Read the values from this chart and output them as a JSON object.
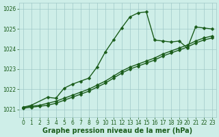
{
  "xlabel": "Graphe pression niveau de la mer (hPa)",
  "background_color": "#ceeee8",
  "grid_color": "#a0c8c8",
  "line_color": "#1a5c1a",
  "marker": "D",
  "markersize": 2.5,
  "linewidth": 1.0,
  "xlim": [
    -0.5,
    23.5
  ],
  "ylim": [
    1020.6,
    1026.3
  ],
  "yticks": [
    1021,
    1022,
    1023,
    1024,
    1025,
    1026
  ],
  "xticks": [
    0,
    1,
    2,
    3,
    4,
    5,
    6,
    7,
    8,
    9,
    10,
    11,
    12,
    13,
    14,
    15,
    16,
    17,
    18,
    19,
    20,
    21,
    22,
    23
  ],
  "line1_x": [
    0,
    1,
    3,
    4,
    5,
    6,
    7,
    8,
    9,
    10,
    11,
    12,
    13,
    14,
    15,
    16,
    17,
    18,
    19,
    20,
    21,
    22,
    23
  ],
  "line1_y": [
    1021.1,
    1021.2,
    1021.6,
    1021.55,
    1022.05,
    1022.25,
    1022.4,
    1022.55,
    1023.1,
    1023.85,
    1024.45,
    1025.05,
    1025.6,
    1025.8,
    1025.85,
    1024.45,
    1024.4,
    1024.35,
    1024.4,
    1024.05,
    1025.1,
    1025.05,
    1025.0
  ],
  "line2_x": [
    0,
    1,
    2,
    3,
    4,
    5,
    6,
    7,
    8,
    9,
    10,
    11,
    12,
    13,
    14,
    15,
    16,
    17,
    18,
    19,
    20,
    21,
    22,
    23
  ],
  "line2_y": [
    1021.05,
    1021.1,
    1021.15,
    1021.2,
    1021.3,
    1021.45,
    1021.6,
    1021.75,
    1021.9,
    1022.1,
    1022.3,
    1022.55,
    1022.8,
    1023.0,
    1023.15,
    1023.3,
    1023.45,
    1023.65,
    1023.8,
    1023.95,
    1024.1,
    1024.3,
    1024.45,
    1024.55
  ],
  "line3_x": [
    0,
    1,
    2,
    3,
    4,
    5,
    6,
    7,
    8,
    9,
    10,
    11,
    12,
    13,
    14,
    15,
    16,
    17,
    18,
    19,
    20,
    21,
    22,
    23
  ],
  "line3_y": [
    1021.1,
    1021.15,
    1021.2,
    1021.3,
    1021.4,
    1021.55,
    1021.7,
    1021.85,
    1022.0,
    1022.2,
    1022.4,
    1022.65,
    1022.9,
    1023.1,
    1023.25,
    1023.4,
    1023.55,
    1023.75,
    1023.9,
    1024.05,
    1024.2,
    1024.4,
    1024.55,
    1024.65
  ],
  "tick_fontsize": 5.5,
  "xlabel_fontsize": 7.0
}
